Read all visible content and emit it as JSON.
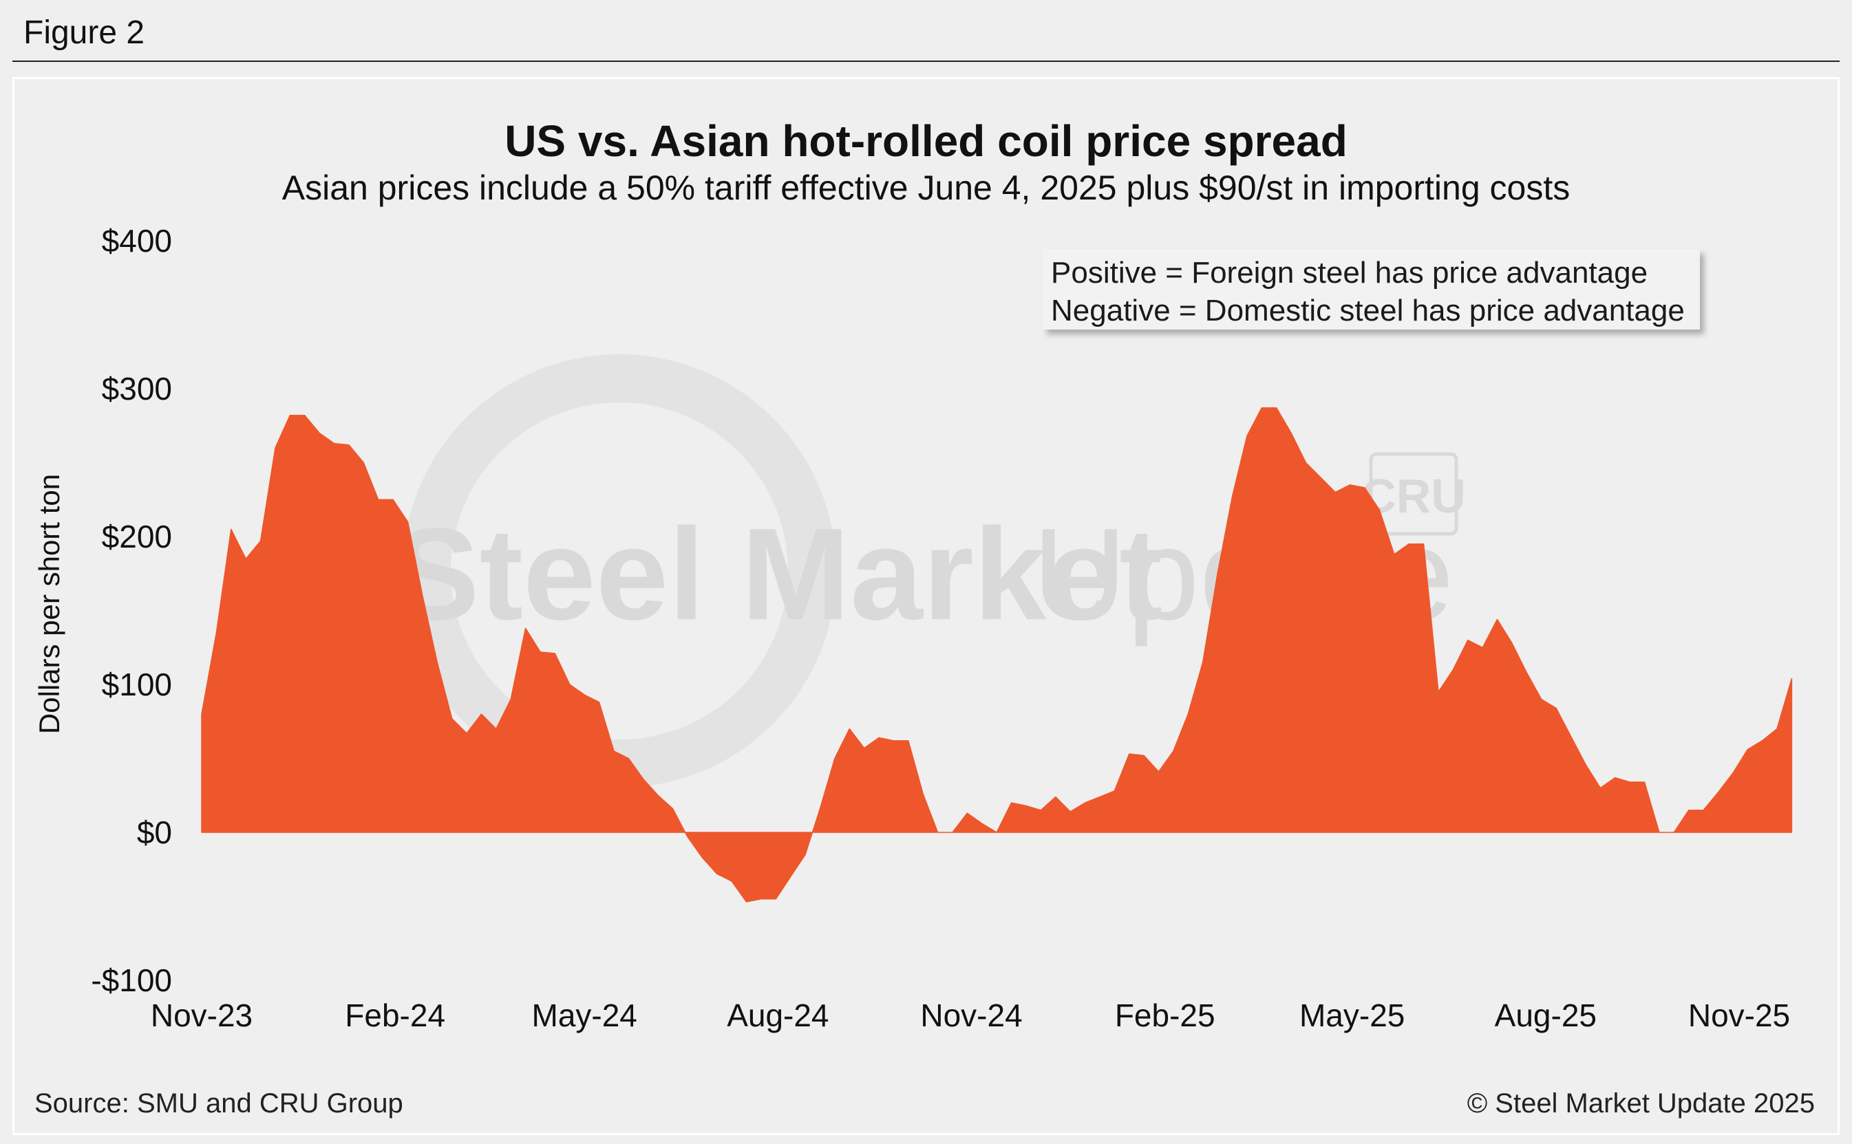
{
  "figure_label": "Figure 2",
  "footer": {
    "source": "Source: SMU and CRU Group",
    "copyright": "© Steel Market Update 2025"
  },
  "watermark": {
    "brand": "Steel Market Update",
    "partner": "CRU"
  },
  "colors": {
    "area": "#ee572b",
    "background": "#efefef",
    "watermark": "#d9d9d9"
  },
  "chart_data": {
    "type": "area",
    "title": "US vs. Asian hot-rolled coil price spread",
    "subtitle": "Asian prices include a 50% tariff effective June 4, 2025 plus $90/st in importing costs",
    "xlabel": "",
    "ylabel": "Dollars per short ton",
    "ylim": [
      -100,
      400
    ],
    "y_ticks": [
      400,
      300,
      200,
      100,
      0,
      -100
    ],
    "y_tick_labels": [
      "$400",
      "$300",
      "$200",
      "$100",
      "$0",
      "-$100"
    ],
    "x_tick_labels": [
      "Nov-23",
      "Feb-24",
      "May-24",
      "Aug-24",
      "Nov-24",
      "Feb-25",
      "May-25",
      "Aug-25",
      "Nov-25"
    ],
    "x_tick_dates": [
      "2023-11-01",
      "2024-02-01",
      "2024-05-01",
      "2024-08-01",
      "2024-11-01",
      "2025-02-01",
      "2025-05-01",
      "2025-08-01",
      "2025-11-01"
    ],
    "grid": false,
    "legend": "top-right",
    "annotations": [
      "Positive = Foreign steel has price advantage",
      "Negative = Domestic steel has price advantage"
    ],
    "series": [
      {
        "x": [
          "2023-11-01",
          "2023-11-08",
          "2023-11-15",
          "2023-11-22",
          "2023-11-29",
          "2023-12-06",
          "2023-12-13",
          "2023-12-20",
          "2023-12-27",
          "2024-01-03",
          "2024-01-10",
          "2024-01-17",
          "2024-01-24",
          "2024-01-31",
          "2024-02-07",
          "2024-02-14",
          "2024-02-21",
          "2024-02-28",
          "2024-03-06",
          "2024-03-13",
          "2024-03-20",
          "2024-03-27",
          "2024-04-03",
          "2024-04-10",
          "2024-04-17",
          "2024-04-24",
          "2024-05-01",
          "2024-05-08",
          "2024-05-15",
          "2024-05-22",
          "2024-05-29",
          "2024-06-05",
          "2024-06-12",
          "2024-06-19",
          "2024-06-26",
          "2024-07-03",
          "2024-07-10",
          "2024-07-17",
          "2024-07-24",
          "2024-07-31",
          "2024-08-07",
          "2024-08-14",
          "2024-08-21",
          "2024-08-28",
          "2024-09-04",
          "2024-09-11",
          "2024-09-18",
          "2024-09-25",
          "2024-10-02",
          "2024-10-09",
          "2024-10-16",
          "2024-10-23",
          "2024-10-30",
          "2024-11-06",
          "2024-11-13",
          "2024-11-20",
          "2024-11-27",
          "2024-12-04",
          "2024-12-11",
          "2024-12-18",
          "2024-12-25",
          "2025-01-01",
          "2025-01-08",
          "2025-01-15",
          "2025-01-22",
          "2025-01-29",
          "2025-02-05",
          "2025-02-12",
          "2025-02-19",
          "2025-02-26",
          "2025-03-05",
          "2025-03-12",
          "2025-03-19",
          "2025-03-26",
          "2025-04-02",
          "2025-04-09",
          "2025-04-16",
          "2025-04-23",
          "2025-04-30",
          "2025-05-07",
          "2025-05-14",
          "2025-05-21",
          "2025-05-28",
          "2025-06-04",
          "2025-06-11",
          "2025-06-18",
          "2025-06-25",
          "2025-07-02",
          "2025-07-09",
          "2025-07-16",
          "2025-07-23",
          "2025-07-30",
          "2025-08-06",
          "2025-08-13",
          "2025-08-20",
          "2025-08-27",
          "2025-09-03",
          "2025-09-10",
          "2025-09-17",
          "2025-09-24",
          "2025-10-01",
          "2025-10-08",
          "2025-10-15",
          "2025-10-22",
          "2025-10-29",
          "2025-11-05",
          "2025-11-12",
          "2025-11-19",
          "2025-11-26"
        ],
        "values": [
          80,
          135,
          205,
          185,
          197,
          260,
          282,
          282,
          270,
          263,
          262,
          250,
          225,
          225,
          210,
          160,
          115,
          77,
          67,
          80,
          70,
          90,
          138,
          122,
          121,
          100,
          93,
          88,
          55,
          50,
          36,
          25,
          16,
          -3,
          -17,
          -28,
          -33,
          -47,
          -45,
          -45,
          -30,
          -15,
          16,
          50,
          70,
          57,
          64,
          62,
          62,
          26,
          0,
          0,
          13,
          6,
          0,
          20,
          18,
          15,
          24,
          14,
          20,
          24,
          28,
          53,
          52,
          41,
          55,
          80,
          115,
          175,
          227,
          268,
          287,
          287,
          270,
          250,
          240,
          230,
          235,
          233,
          218,
          188,
          195,
          195,
          95,
          110,
          130,
          125,
          144,
          128,
          108,
          90,
          84,
          65,
          46,
          30,
          37,
          34,
          34,
          0,
          0,
          15,
          15,
          27,
          40,
          56,
          62,
          70,
          104
        ]
      }
    ]
  }
}
